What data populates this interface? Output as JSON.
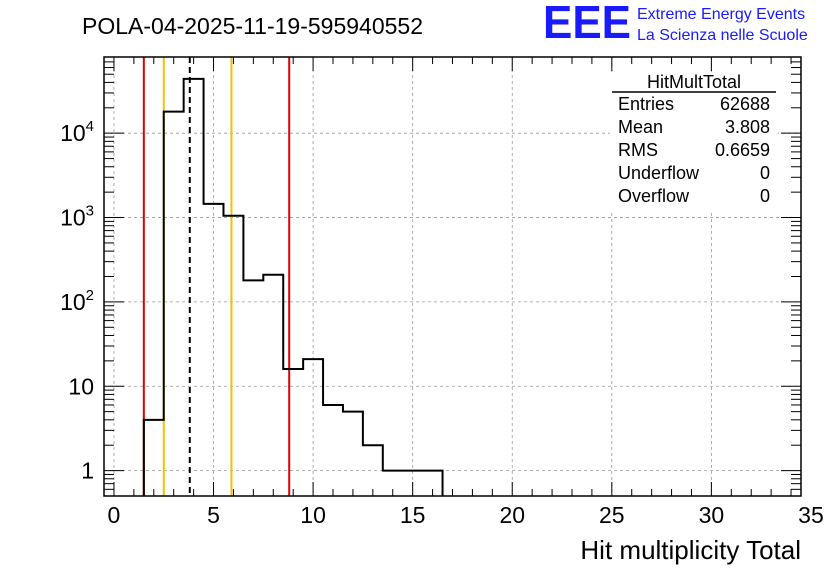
{
  "chart_data": {
    "type": "histogram",
    "title": "POLA-04-2025-11-19-595940552",
    "xlabel": "Hit multiplicity Total",
    "ylabel": "",
    "xlim": [
      -0.5,
      34.5
    ],
    "ylim": [
      0.5,
      80000
    ],
    "yscale": "log",
    "grid": true,
    "bin_width": 1,
    "bin_edges_start": 1.5,
    "counts": [
      4,
      18000,
      44000,
      1450,
      1050,
      180,
      210,
      16,
      21,
      6,
      5,
      2,
      1,
      1,
      1
    ],
    "x_ticks": [
      {
        "value": 0,
        "label": "0"
      },
      {
        "value": 5,
        "label": "5"
      },
      {
        "value": 10,
        "label": "10"
      },
      {
        "value": 15,
        "label": "15"
      },
      {
        "value": 20,
        "label": "20"
      },
      {
        "value": 25,
        "label": "25"
      },
      {
        "value": 30,
        "label": "30"
      },
      {
        "value": 35,
        "label": "35"
      }
    ],
    "y_ticks": [
      {
        "value": 1,
        "base": "1",
        "exp": ""
      },
      {
        "value": 10,
        "base": "10",
        "exp": ""
      },
      {
        "value": 100,
        "base": "10",
        "exp": "2"
      },
      {
        "value": 1000,
        "base": "10",
        "exp": "3"
      },
      {
        "value": 10000,
        "base": "10",
        "exp": "4"
      }
    ],
    "vertical_lines": [
      {
        "x": 1.5,
        "color": "#dd0000",
        "style": "solid"
      },
      {
        "x": 2.5,
        "color": "#f2c200",
        "style": "solid"
      },
      {
        "x": 3.808,
        "color": "#000000",
        "style": "dashed"
      },
      {
        "x": 5.9,
        "color": "#f2c200",
        "style": "solid"
      },
      {
        "x": 8.8,
        "color": "#dd0000",
        "style": "solid"
      }
    ],
    "stats_box": {
      "title": "HitMultTotal",
      "rows": [
        {
          "label": "Entries",
          "value": "62688"
        },
        {
          "label": "Mean",
          "value": "3.808"
        },
        {
          "label": "RMS",
          "value": "0.6659"
        },
        {
          "label": "Underflow",
          "value": "0"
        },
        {
          "label": "Overflow",
          "value": "0"
        }
      ]
    }
  },
  "logo": {
    "letters": "EEE",
    "line1": "Extreme Energy Events",
    "line2": "La Scienza nelle Scuole",
    "color": "#1a1aff"
  },
  "colors": {
    "histogram": "#000000",
    "grid": "#9a9a9a",
    "frame": "#000000"
  }
}
